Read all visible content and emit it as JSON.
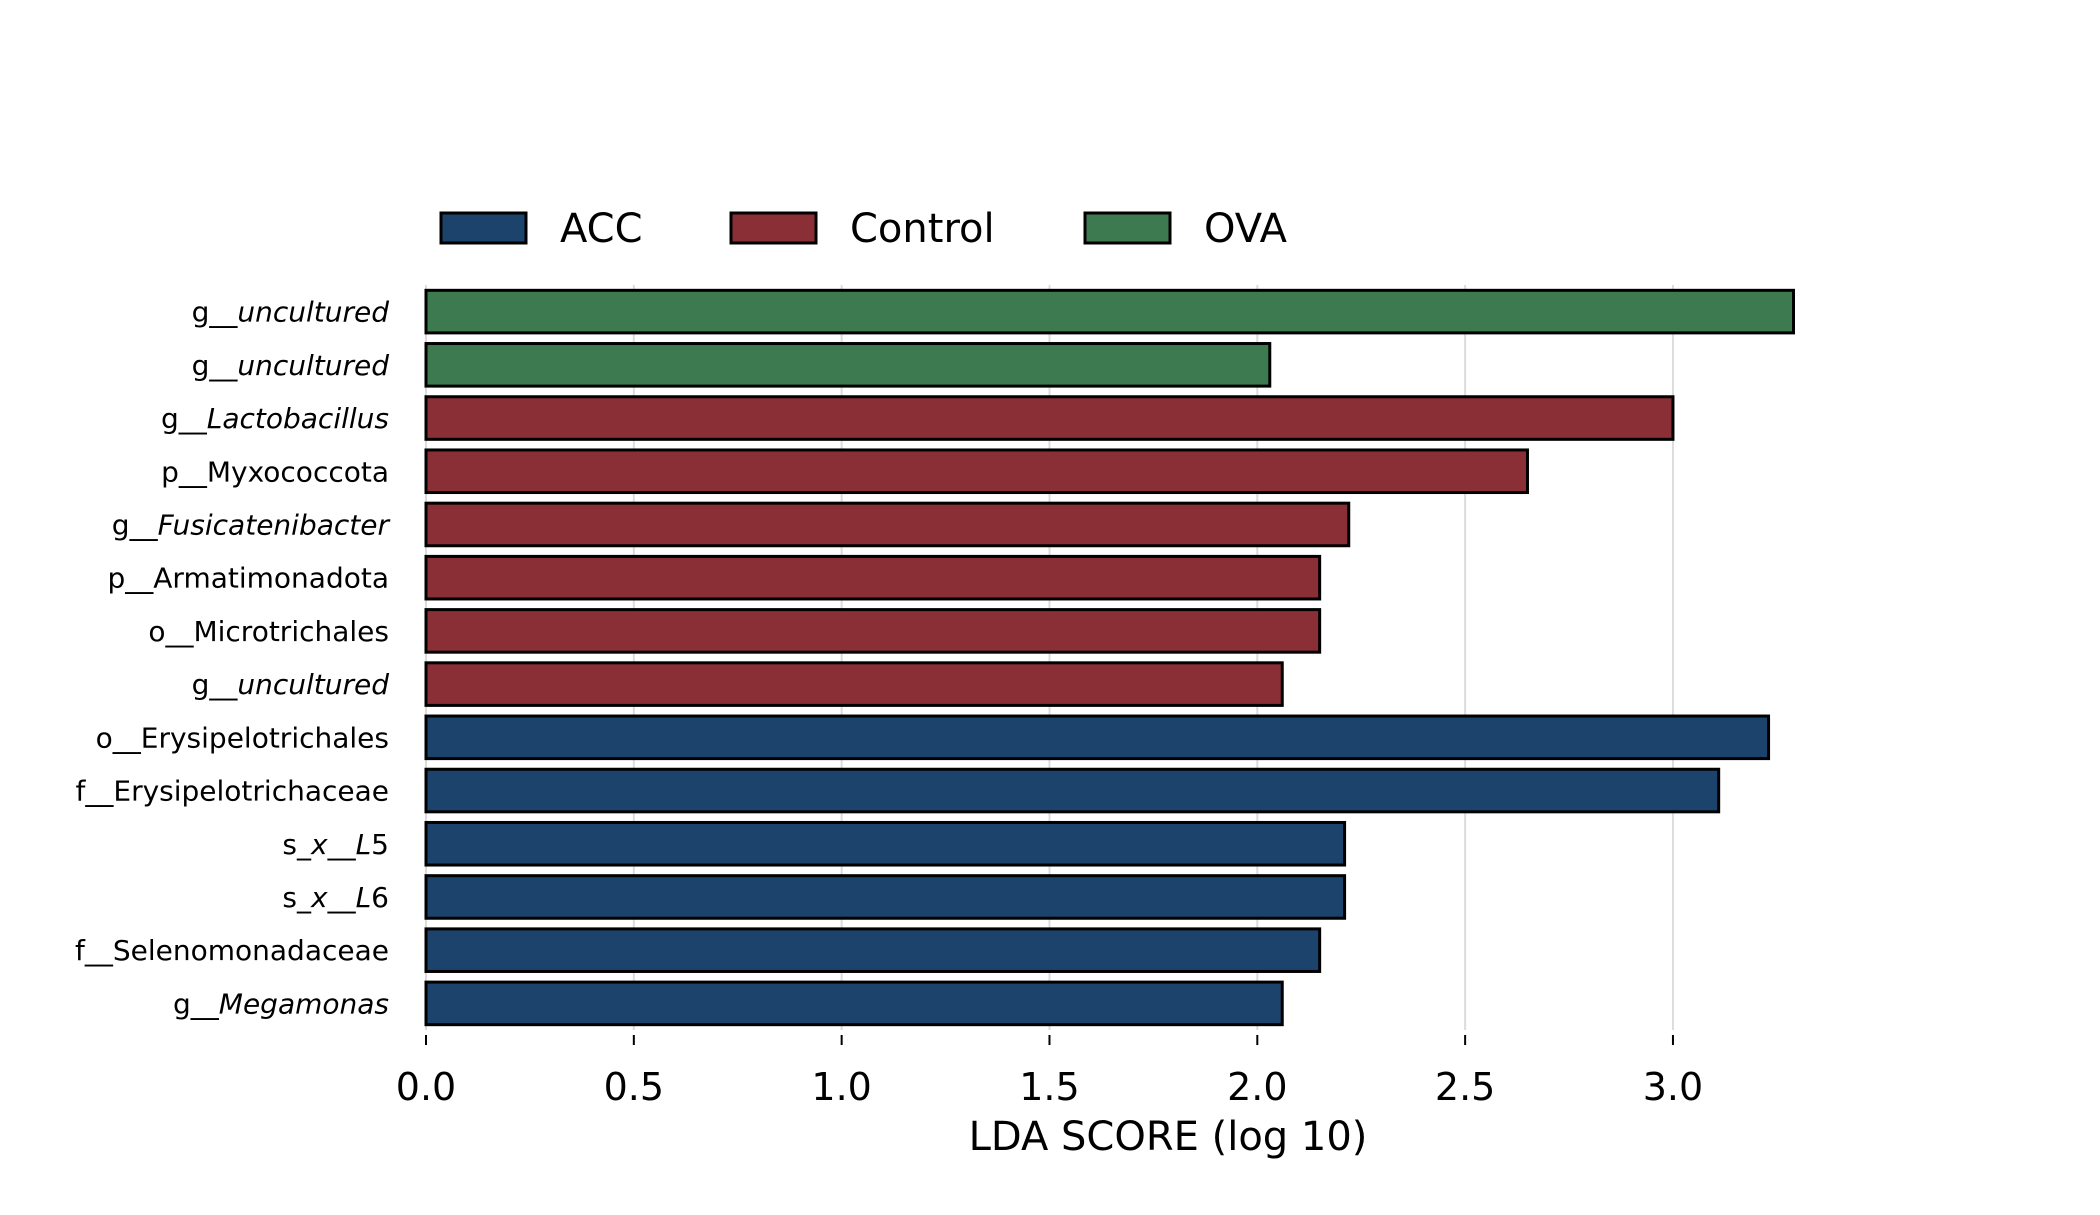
{
  "chart_data": {
    "type": "bar",
    "orientation": "horizontal",
    "title": "",
    "xlabel": "LDA SCORE (log 10)",
    "ylabel": "",
    "xlim": [
      0,
      3.45
    ],
    "xticks": [
      "0.0",
      "0.5",
      "1.0",
      "1.5",
      "2.0",
      "2.5",
      "3.0"
    ],
    "grid": true,
    "legend": {
      "placement": "top",
      "entries": [
        {
          "name": "ACC",
          "color": "#1b436b"
        },
        {
          "name": "Control",
          "color": "#8b2f37"
        },
        {
          "name": "OVA",
          "color": "#3e7a4f"
        }
      ]
    },
    "bars": [
      {
        "prefix": "g__",
        "taxon": "uncultured",
        "italic": true,
        "group": "OVA",
        "value": 3.29
      },
      {
        "prefix": "g__",
        "taxon": "uncultured",
        "italic": true,
        "group": "OVA",
        "value": 2.03
      },
      {
        "prefix": "g__",
        "taxon": "Lactobacillus",
        "italic": true,
        "group": "Control",
        "value": 3.0
      },
      {
        "prefix": "p__",
        "taxon": "Myxococcota",
        "italic": false,
        "group": "Control",
        "value": 2.65
      },
      {
        "prefix": "g__",
        "taxon": "Fusicatenibacter",
        "italic": true,
        "group": "Control",
        "value": 2.22
      },
      {
        "prefix": "p__",
        "taxon": "Armatimonadota",
        "italic": false,
        "group": "Control",
        "value": 2.15
      },
      {
        "prefix": "o__",
        "taxon": "Microtrichales",
        "italic": false,
        "group": "Control",
        "value": 2.15
      },
      {
        "prefix": "g__",
        "taxon": "uncultured",
        "italic": true,
        "group": "Control",
        "value": 2.06
      },
      {
        "prefix": "o__",
        "taxon": "Erysipelotrichales",
        "italic": false,
        "group": "ACC",
        "value": 3.23
      },
      {
        "prefix": "f__",
        "taxon": "Erysipelotrichaceae",
        "italic": false,
        "group": "ACC",
        "value": 3.11
      },
      {
        "prefix": "s_",
        "taxon": "x__L5",
        "italic": "partial",
        "group": "ACC",
        "value": 2.21
      },
      {
        "prefix": "s_",
        "taxon": "x__L6",
        "italic": "partial",
        "group": "ACC",
        "value": 2.21
      },
      {
        "prefix": "f__",
        "taxon": "Selenomonadaceae",
        "italic": false,
        "group": "ACC",
        "value": 2.15
      },
      {
        "prefix": "g__",
        "taxon": "Megamonas",
        "italic": true,
        "group": "ACC",
        "value": 2.06
      }
    ]
  }
}
